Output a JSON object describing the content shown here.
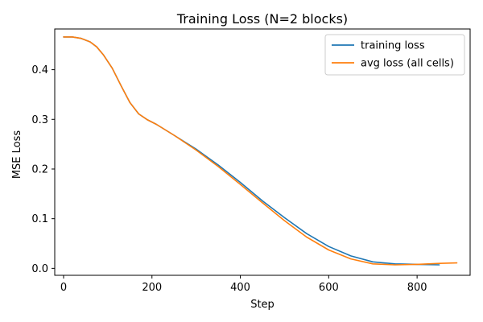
{
  "chart_data": {
    "type": "line",
    "title": "Training Loss (N=2 blocks)",
    "xlabel": "Step",
    "ylabel": "MSE Loss",
    "xlim": [
      -20,
      920
    ],
    "ylim": [
      -0.014,
      0.482
    ],
    "xticks": [
      0,
      200,
      400,
      600,
      800
    ],
    "yticks": [
      0.0,
      0.1,
      0.2,
      0.3,
      0.4
    ],
    "xtick_labels": [
      "0",
      "200",
      "400",
      "600",
      "800"
    ],
    "ytick_labels": [
      "0.0",
      "0.1",
      "0.2",
      "0.3",
      "0.4"
    ],
    "grid": false,
    "legend_position": "top-right",
    "series": [
      {
        "name": "training loss",
        "color": "#1f77b4",
        "x": [
          0,
          20,
          40,
          60,
          75,
          90,
          110,
          130,
          150,
          170,
          190,
          210,
          250,
          300,
          350,
          400,
          450,
          500,
          550,
          600,
          650,
          700,
          750,
          800,
          850
        ],
        "y": [
          0.466,
          0.466,
          0.463,
          0.456,
          0.446,
          0.43,
          0.403,
          0.368,
          0.334,
          0.311,
          0.299,
          0.29,
          0.268,
          0.24,
          0.208,
          0.173,
          0.136,
          0.102,
          0.07,
          0.044,
          0.025,
          0.013,
          0.009,
          0.008,
          0.007
        ]
      },
      {
        "name": "avg loss (all cells)",
        "color": "#ff7f0e",
        "x": [
          0,
          20,
          40,
          60,
          75,
          90,
          110,
          130,
          150,
          170,
          190,
          210,
          250,
          300,
          350,
          400,
          450,
          500,
          550,
          600,
          650,
          700,
          750,
          800,
          850,
          890
        ],
        "y": [
          0.466,
          0.466,
          0.463,
          0.456,
          0.446,
          0.43,
          0.403,
          0.368,
          0.334,
          0.311,
          0.299,
          0.29,
          0.268,
          0.238,
          0.205,
          0.169,
          0.132,
          0.096,
          0.063,
          0.037,
          0.019,
          0.009,
          0.007,
          0.008,
          0.01,
          0.011
        ]
      }
    ]
  }
}
